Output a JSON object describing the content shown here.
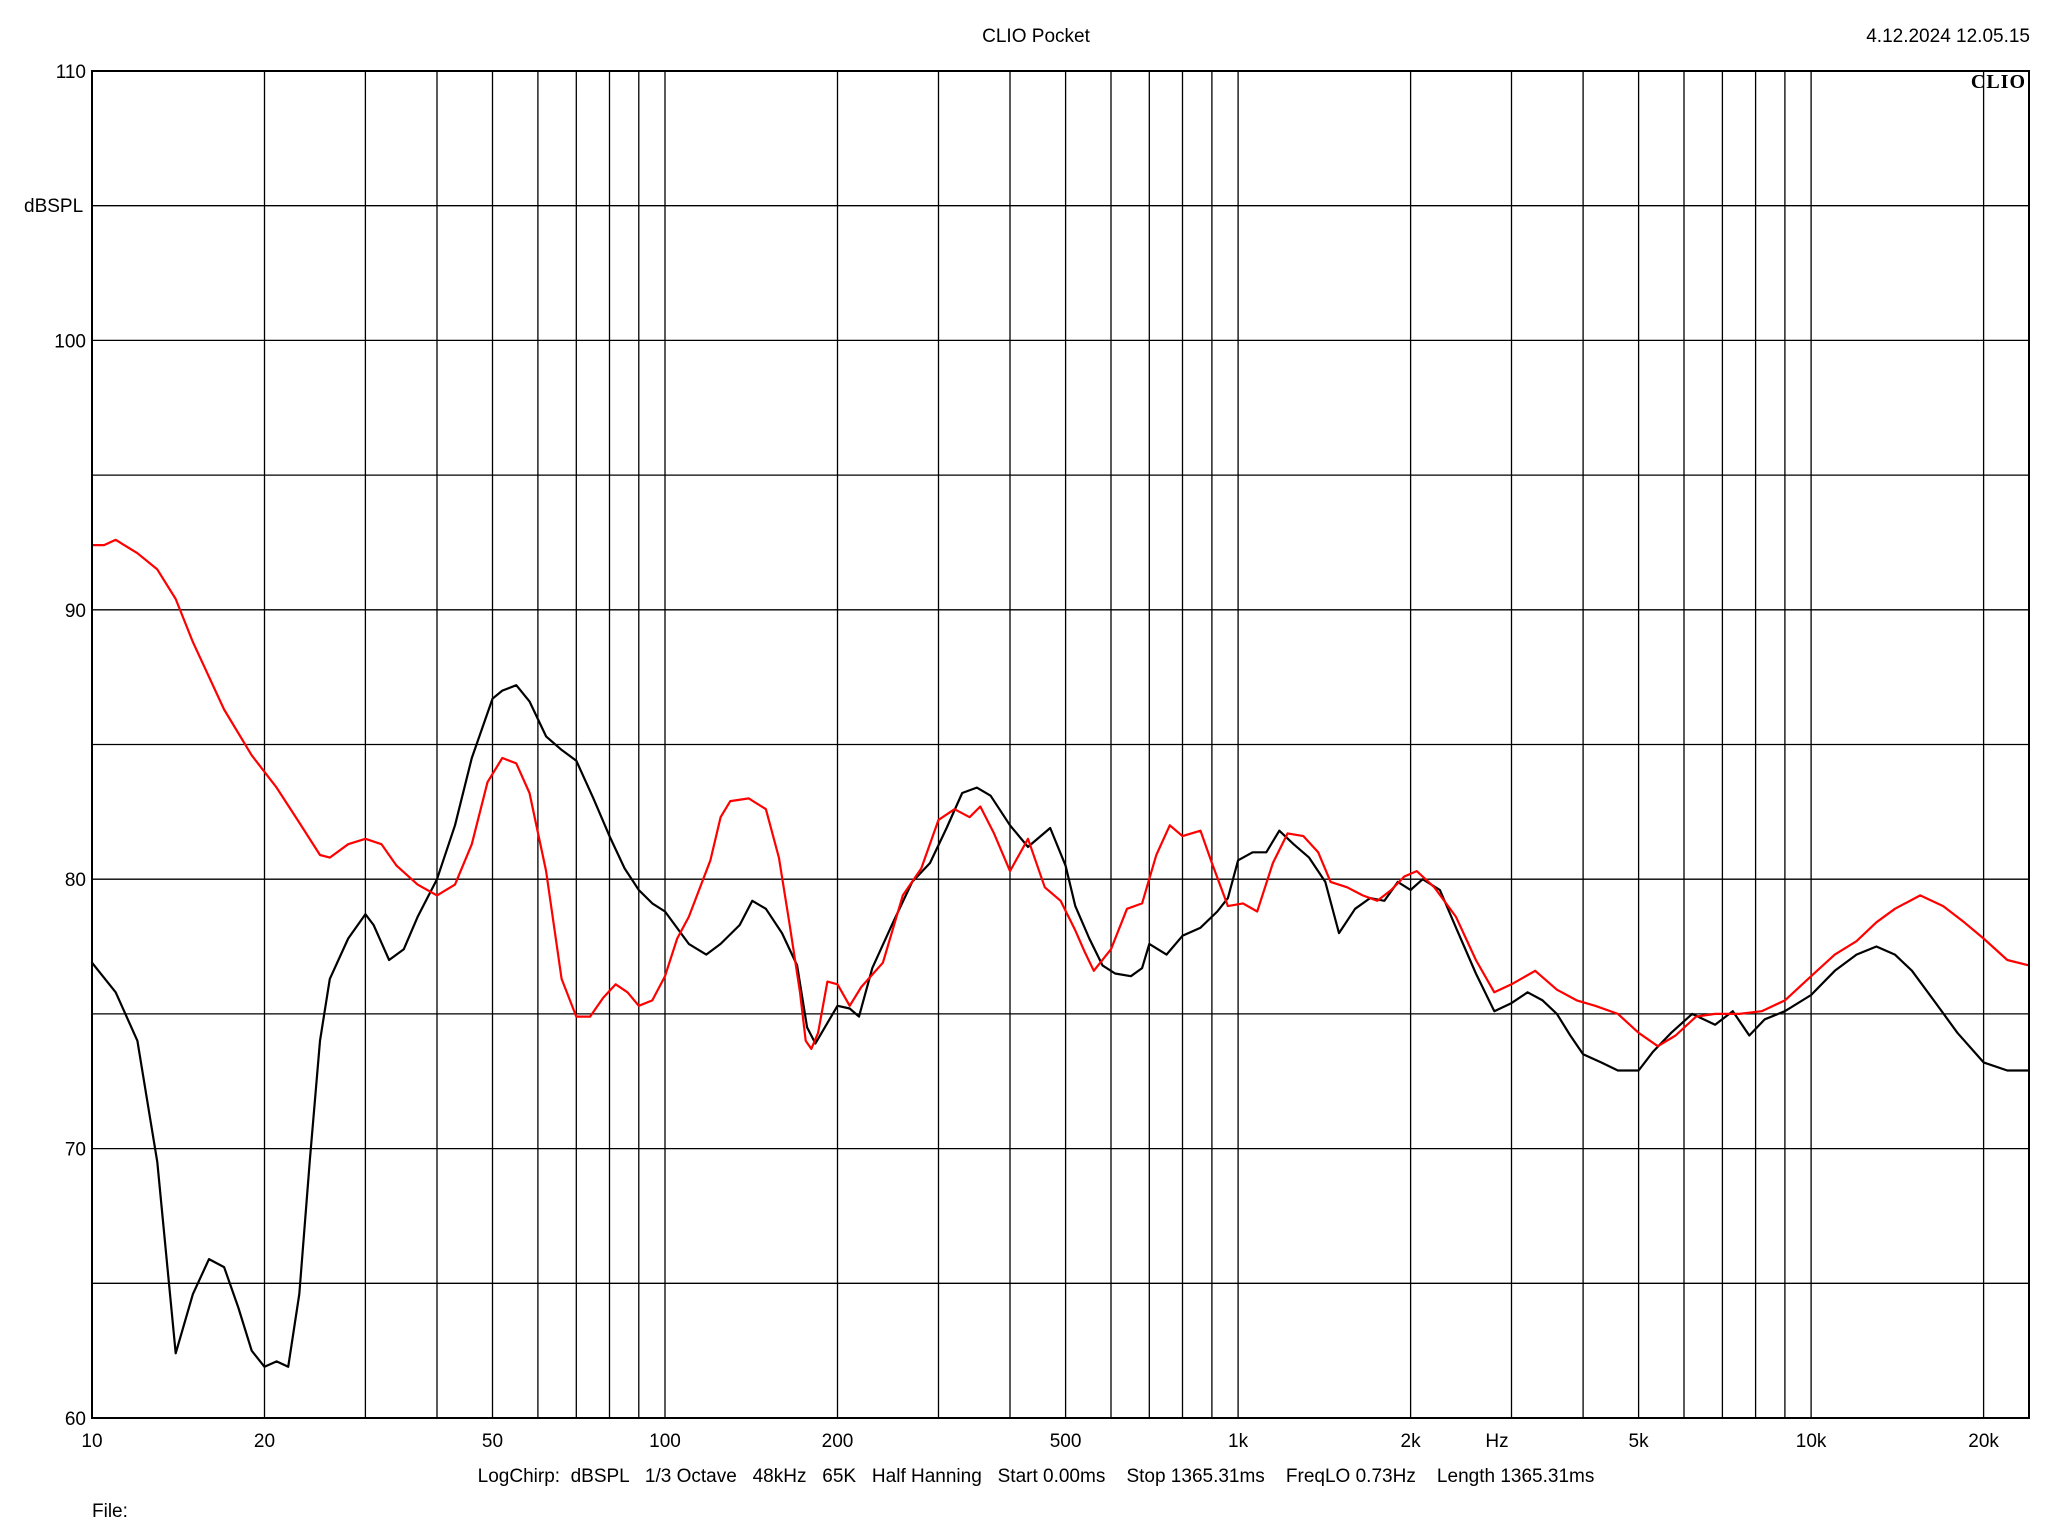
{
  "header": {
    "title": "CLIO Pocket",
    "datetime": "4.12.2024 12.05.15",
    "brand": "CLIO"
  },
  "footer": {
    "info": "LogChirp:  dBSPL   1/3 Octave   48kHz   65K   Half Hanning   Start 0.00ms    Stop 1365.31ms    FreqLO 0.73Hz    Length 1365.31ms",
    "file_label": "File:"
  },
  "colors": {
    "series_black": "#000000",
    "series_red": "#ff0000",
    "grid": "#000000",
    "background": "#ffffff"
  },
  "chart_data": {
    "type": "line",
    "title": "CLIO Pocket",
    "xlabel": "Hz",
    "ylabel": "dBSPL",
    "xscale": "log",
    "xlim": [
      10,
      24000
    ],
    "ylim": [
      60,
      110
    ],
    "grid": true,
    "x_ticks": [
      {
        "value": 10,
        "label": "10"
      },
      {
        "value": 20,
        "label": "20"
      },
      {
        "value": 50,
        "label": "50"
      },
      {
        "value": 100,
        "label": "100"
      },
      {
        "value": 200,
        "label": "200"
      },
      {
        "value": 500,
        "label": "500"
      },
      {
        "value": 1000,
        "label": "1k"
      },
      {
        "value": 2000,
        "label": "2k"
      },
      {
        "value": 5000,
        "label": "5k"
      },
      {
        "value": 10000,
        "label": "10k"
      },
      {
        "value": 20000,
        "label": "20k"
      }
    ],
    "y_ticks": [
      {
        "value": 110,
        "label": "110"
      },
      {
        "value": 100,
        "label": "100"
      },
      {
        "value": 90,
        "label": "90"
      },
      {
        "value": 80,
        "label": "80"
      },
      {
        "value": 70,
        "label": "70"
      },
      {
        "value": 60,
        "label": "60"
      }
    ],
    "series": [
      {
        "color": "#000000",
        "points": [
          [
            10,
            76.9
          ],
          [
            11,
            75.8
          ],
          [
            12,
            74.0
          ],
          [
            13,
            69.5
          ],
          [
            14,
            62.4
          ],
          [
            15,
            64.6
          ],
          [
            16,
            65.9
          ],
          [
            17,
            65.6
          ],
          [
            18,
            64.1
          ],
          [
            19,
            62.5
          ],
          [
            20,
            61.9
          ],
          [
            21,
            62.1
          ],
          [
            22,
            61.9
          ],
          [
            23,
            64.6
          ],
          [
            24,
            69.6
          ],
          [
            25,
            74.0
          ],
          [
            26,
            76.3
          ],
          [
            28,
            77.8
          ],
          [
            30,
            78.7
          ],
          [
            31,
            78.3
          ],
          [
            33,
            77.0
          ],
          [
            35,
            77.4
          ],
          [
            37,
            78.6
          ],
          [
            40,
            80.0
          ],
          [
            43,
            82.0
          ],
          [
            46,
            84.5
          ],
          [
            50,
            86.7
          ],
          [
            52,
            87.0
          ],
          [
            55,
            87.2
          ],
          [
            58,
            86.6
          ],
          [
            62,
            85.3
          ],
          [
            66,
            84.8
          ],
          [
            70,
            84.4
          ],
          [
            75,
            83.0
          ],
          [
            80,
            81.6
          ],
          [
            85,
            80.4
          ],
          [
            90,
            79.6
          ],
          [
            95,
            79.1
          ],
          [
            100,
            78.8
          ],
          [
            110,
            77.6
          ],
          [
            118,
            77.2
          ],
          [
            125,
            77.6
          ],
          [
            135,
            78.3
          ],
          [
            142,
            79.2
          ],
          [
            150,
            78.9
          ],
          [
            160,
            78.0
          ],
          [
            170,
            76.8
          ],
          [
            177,
            74.5
          ],
          [
            183,
            73.9
          ],
          [
            190,
            74.5
          ],
          [
            200,
            75.3
          ],
          [
            210,
            75.2
          ],
          [
            218,
            74.9
          ],
          [
            230,
            76.7
          ],
          [
            250,
            78.4
          ],
          [
            270,
            79.9
          ],
          [
            290,
            80.6
          ],
          [
            310,
            81.9
          ],
          [
            330,
            83.2
          ],
          [
            350,
            83.4
          ],
          [
            370,
            83.1
          ],
          [
            400,
            82.0
          ],
          [
            430,
            81.2
          ],
          [
            470,
            81.9
          ],
          [
            500,
            80.5
          ],
          [
            520,
            79.0
          ],
          [
            550,
            77.8
          ],
          [
            580,
            76.8
          ],
          [
            610,
            76.5
          ],
          [
            650,
            76.4
          ],
          [
            680,
            76.7
          ],
          [
            700,
            77.6
          ],
          [
            750,
            77.2
          ],
          [
            800,
            77.9
          ],
          [
            860,
            78.2
          ],
          [
            920,
            78.8
          ],
          [
            960,
            79.3
          ],
          [
            1000,
            80.7
          ],
          [
            1060,
            81.0
          ],
          [
            1120,
            81.0
          ],
          [
            1180,
            81.8
          ],
          [
            1250,
            81.3
          ],
          [
            1330,
            80.8
          ],
          [
            1420,
            79.9
          ],
          [
            1500,
            78.0
          ],
          [
            1600,
            78.9
          ],
          [
            1700,
            79.3
          ],
          [
            1800,
            79.2
          ],
          [
            1900,
            79.9
          ],
          [
            2000,
            79.6
          ],
          [
            2100,
            80.0
          ],
          [
            2250,
            79.6
          ],
          [
            2400,
            78.2
          ],
          [
            2600,
            76.5
          ],
          [
            2800,
            75.1
          ],
          [
            3000,
            75.4
          ],
          [
            3200,
            75.8
          ],
          [
            3400,
            75.5
          ],
          [
            3600,
            75.0
          ],
          [
            3800,
            74.2
          ],
          [
            4000,
            73.5
          ],
          [
            4300,
            73.2
          ],
          [
            4600,
            72.9
          ],
          [
            5000,
            72.9
          ],
          [
            5300,
            73.6
          ],
          [
            5700,
            74.3
          ],
          [
            6200,
            75.0
          ],
          [
            6800,
            74.6
          ],
          [
            7300,
            75.1
          ],
          [
            7800,
            74.2
          ],
          [
            8300,
            74.8
          ],
          [
            9000,
            75.1
          ],
          [
            10000,
            75.7
          ],
          [
            11000,
            76.6
          ],
          [
            12000,
            77.2
          ],
          [
            13000,
            77.5
          ],
          [
            14000,
            77.2
          ],
          [
            15000,
            76.6
          ],
          [
            16500,
            75.4
          ],
          [
            18000,
            74.3
          ],
          [
            20000,
            73.2
          ],
          [
            22000,
            72.9
          ],
          [
            24000,
            72.9
          ]
        ]
      },
      {
        "color": "#ff0000",
        "points": [
          [
            10,
            92.4
          ],
          [
            10.5,
            92.4
          ],
          [
            11,
            92.6
          ],
          [
            12,
            92.1
          ],
          [
            13,
            91.5
          ],
          [
            14,
            90.4
          ],
          [
            15,
            88.8
          ],
          [
            17,
            86.3
          ],
          [
            19,
            84.6
          ],
          [
            21,
            83.4
          ],
          [
            23,
            82.1
          ],
          [
            25,
            80.9
          ],
          [
            26,
            80.8
          ],
          [
            28,
            81.3
          ],
          [
            30,
            81.5
          ],
          [
            32,
            81.3
          ],
          [
            34,
            80.5
          ],
          [
            37,
            79.8
          ],
          [
            40,
            79.4
          ],
          [
            43,
            79.8
          ],
          [
            46,
            81.3
          ],
          [
            49,
            83.6
          ],
          [
            52,
            84.5
          ],
          [
            55,
            84.3
          ],
          [
            58,
            83.2
          ],
          [
            62,
            80.3
          ],
          [
            66,
            76.3
          ],
          [
            70,
            74.9
          ],
          [
            74,
            74.9
          ],
          [
            78,
            75.6
          ],
          [
            82,
            76.1
          ],
          [
            86,
            75.8
          ],
          [
            90,
            75.3
          ],
          [
            95,
            75.5
          ],
          [
            100,
            76.4
          ],
          [
            105,
            77.8
          ],
          [
            110,
            78.6
          ],
          [
            120,
            80.7
          ],
          [
            125,
            82.3
          ],
          [
            130,
            82.9
          ],
          [
            140,
            83.0
          ],
          [
            150,
            82.6
          ],
          [
            158,
            80.8
          ],
          [
            165,
            78.3
          ],
          [
            172,
            75.8
          ],
          [
            176,
            74.0
          ],
          [
            180,
            73.7
          ],
          [
            185,
            74.3
          ],
          [
            192,
            76.2
          ],
          [
            200,
            76.1
          ],
          [
            210,
            75.3
          ],
          [
            220,
            76.0
          ],
          [
            240,
            76.9
          ],
          [
            260,
            79.4
          ],
          [
            280,
            80.4
          ],
          [
            300,
            82.2
          ],
          [
            320,
            82.6
          ],
          [
            340,
            82.3
          ],
          [
            355,
            82.7
          ],
          [
            375,
            81.7
          ],
          [
            400,
            80.3
          ],
          [
            430,
            81.5
          ],
          [
            460,
            79.7
          ],
          [
            490,
            79.2
          ],
          [
            520,
            78.1
          ],
          [
            540,
            77.3
          ],
          [
            560,
            76.6
          ],
          [
            600,
            77.4
          ],
          [
            640,
            78.9
          ],
          [
            680,
            79.1
          ],
          [
            720,
            80.9
          ],
          [
            760,
            82.0
          ],
          [
            800,
            81.6
          ],
          [
            860,
            81.8
          ],
          [
            900,
            80.6
          ],
          [
            960,
            79.0
          ],
          [
            1020,
            79.1
          ],
          [
            1080,
            78.8
          ],
          [
            1150,
            80.6
          ],
          [
            1220,
            81.7
          ],
          [
            1300,
            81.6
          ],
          [
            1380,
            81.0
          ],
          [
            1450,
            79.9
          ],
          [
            1550,
            79.7
          ],
          [
            1650,
            79.4
          ],
          [
            1750,
            79.2
          ],
          [
            1850,
            79.6
          ],
          [
            1950,
            80.1
          ],
          [
            2050,
            80.3
          ],
          [
            2200,
            79.7
          ],
          [
            2400,
            78.6
          ],
          [
            2600,
            77.0
          ],
          [
            2800,
            75.8
          ],
          [
            3000,
            76.1
          ],
          [
            3300,
            76.6
          ],
          [
            3600,
            75.9
          ],
          [
            3900,
            75.5
          ],
          [
            4200,
            75.3
          ],
          [
            4600,
            75.0
          ],
          [
            5000,
            74.3
          ],
          [
            5400,
            73.8
          ],
          [
            5800,
            74.2
          ],
          [
            6300,
            74.9
          ],
          [
            6800,
            75.0
          ],
          [
            7500,
            75.0
          ],
          [
            8200,
            75.1
          ],
          [
            9000,
            75.5
          ],
          [
            10000,
            76.4
          ],
          [
            11000,
            77.2
          ],
          [
            12000,
            77.7
          ],
          [
            13000,
            78.4
          ],
          [
            14000,
            78.9
          ],
          [
            15500,
            79.4
          ],
          [
            17000,
            79.0
          ],
          [
            18500,
            78.4
          ],
          [
            20000,
            77.8
          ],
          [
            22000,
            77.0
          ],
          [
            24000,
            76.8
          ]
        ]
      }
    ]
  }
}
